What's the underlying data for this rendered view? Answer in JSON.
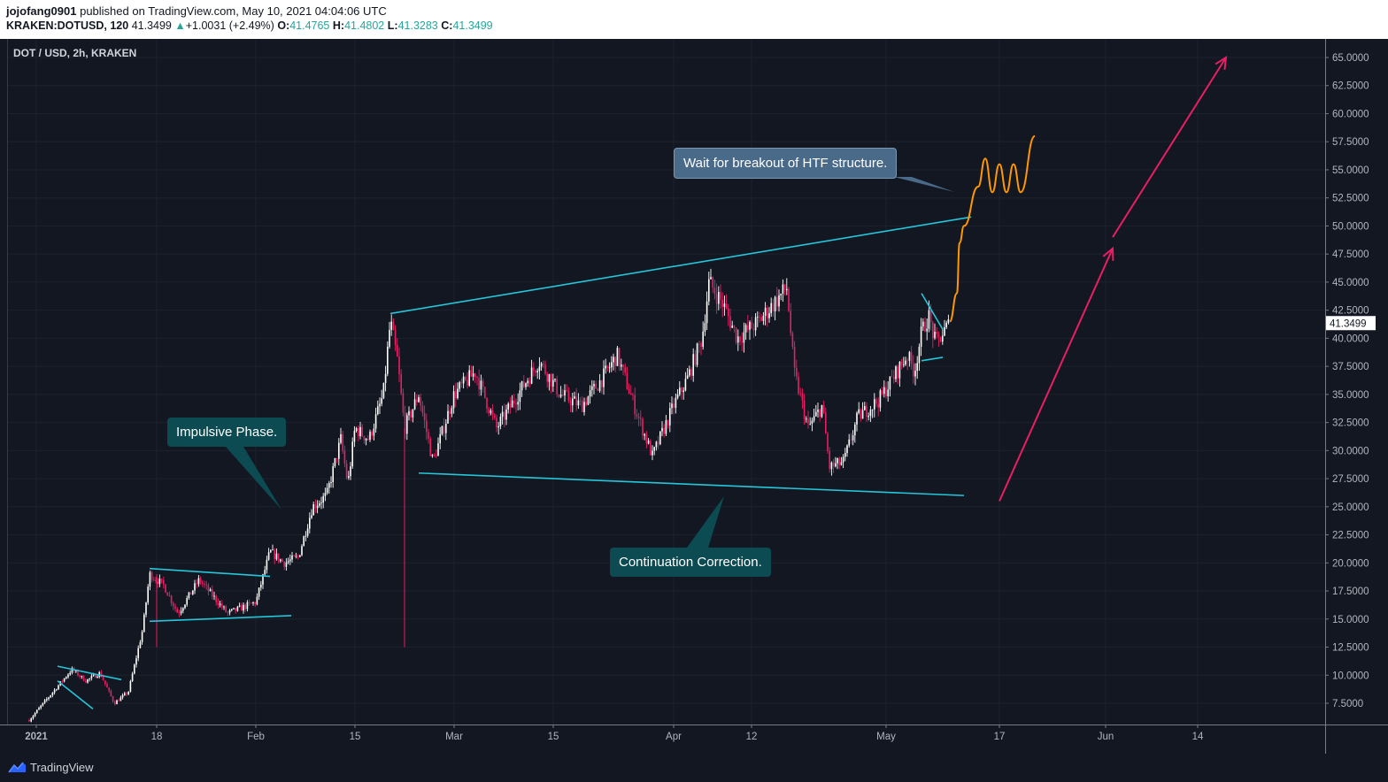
{
  "header": {
    "publisher": "jojofang0901",
    "published_text": "published on TradingView.com, May 10, 2021 04:04:06 UTC",
    "symbol": "KRAKEN:DOTUSD, 120",
    "last": "41.3499",
    "change_arrow": "▲",
    "change": "+1.0031 (+2.49%)",
    "o_label": "O:",
    "o_value": "41.4765",
    "h_label": "H:",
    "h_value": "41.4802",
    "l_label": "L:",
    "l_value": "41.3283",
    "c_label": "C:",
    "c_value": "41.3499"
  },
  "chart_data": {
    "type": "candlestick",
    "title": "DOT / USD, 2h, KRAKEN",
    "last_price_label": "41.3499",
    "y_ticks": [
      7.5,
      10,
      12.5,
      15,
      17.5,
      20,
      22.5,
      25,
      27.5,
      30,
      32.5,
      35,
      37.5,
      40,
      42.5,
      45,
      47.5,
      50,
      52.5,
      55,
      57.5,
      60,
      62.5,
      65
    ],
    "y_tick_decimals": 4,
    "x_ticks": [
      {
        "label": "2021",
        "date": "2021-01-01",
        "bold": true
      },
      {
        "label": "18",
        "date": "2021-01-18"
      },
      {
        "label": "Feb",
        "date": "2021-02-01"
      },
      {
        "label": "15",
        "date": "2021-02-15"
      },
      {
        "label": "Mar",
        "date": "2021-03-01"
      },
      {
        "label": "15",
        "date": "2021-03-15"
      },
      {
        "label": "Apr",
        "date": "2021-04-01"
      },
      {
        "label": "12",
        "date": "2021-04-12"
      },
      {
        "label": "May",
        "date": "2021-05-01"
      },
      {
        "label": "17",
        "date": "2021-05-17"
      },
      {
        "label": "Jun",
        "date": "2021-06-01"
      },
      {
        "label": "14",
        "date": "2021-06-14"
      }
    ],
    "price_path": [
      [
        "2020-12-31",
        6.0
      ],
      [
        "2021-01-04",
        9.0
      ],
      [
        "2021-01-06",
        10.5
      ],
      [
        "2021-01-08",
        9.5
      ],
      [
        "2021-01-10",
        10.2
      ],
      [
        "2021-01-12",
        7.5
      ],
      [
        "2021-01-14",
        8.5
      ],
      [
        "2021-01-16",
        14.0
      ],
      [
        "2021-01-17",
        19.0
      ],
      [
        "2021-01-19",
        18.0
      ],
      [
        "2021-01-21",
        15.5
      ],
      [
        "2021-01-24",
        18.5
      ],
      [
        "2021-01-28",
        15.5
      ],
      [
        "2021-02-01",
        16.5
      ],
      [
        "2021-02-03",
        21.0
      ],
      [
        "2021-02-05",
        20.0
      ],
      [
        "2021-02-07",
        20.5
      ],
      [
        "2021-02-09",
        25.0
      ],
      [
        "2021-02-11",
        26.0
      ],
      [
        "2021-02-13",
        31.0
      ],
      [
        "2021-02-14",
        27.0
      ],
      [
        "2021-02-15",
        32.0
      ],
      [
        "2021-02-17",
        31.0
      ],
      [
        "2021-02-19",
        35.0
      ],
      [
        "2021-02-20",
        41.5
      ],
      [
        "2021-02-21",
        38.0
      ],
      [
        "2021-02-22",
        32.0
      ],
      [
        "2021-02-24",
        35.0
      ],
      [
        "2021-02-26",
        29.0
      ],
      [
        "2021-03-01",
        35.0
      ],
      [
        "2021-03-04",
        37.0
      ],
      [
        "2021-03-07",
        32.0
      ],
      [
        "2021-03-11",
        36.0
      ],
      [
        "2021-03-13",
        38.0
      ],
      [
        "2021-03-16",
        35.0
      ],
      [
        "2021-03-19",
        34.0
      ],
      [
        "2021-03-22",
        36.5
      ],
      [
        "2021-03-24",
        38.5
      ],
      [
        "2021-03-27",
        33.0
      ],
      [
        "2021-03-29",
        29.5
      ],
      [
        "2021-04-01",
        34.0
      ],
      [
        "2021-04-03",
        36.5
      ],
      [
        "2021-04-05",
        40.0
      ],
      [
        "2021-04-06",
        45.0
      ],
      [
        "2021-04-08",
        43.0
      ],
      [
        "2021-04-10",
        40.0
      ],
      [
        "2021-04-13",
        41.5
      ],
      [
        "2021-04-15",
        43.0
      ],
      [
        "2021-04-17",
        44.5
      ],
      [
        "2021-04-18",
        37.0
      ],
      [
        "2021-04-20",
        32.0
      ],
      [
        "2021-04-22",
        34.0
      ],
      [
        "2021-04-23",
        28.5
      ],
      [
        "2021-04-25",
        29.0
      ],
      [
        "2021-04-27",
        33.0
      ],
      [
        "2021-04-30",
        34.5
      ],
      [
        "2021-05-02",
        36.5
      ],
      [
        "2021-05-04",
        38.5
      ],
      [
        "2021-05-05",
        37.0
      ],
      [
        "2021-05-06",
        40.5
      ],
      [
        "2021-05-07",
        42.0
      ],
      [
        "2021-05-08",
        39.5
      ],
      [
        "2021-05-10",
        41.35
      ]
    ],
    "spike_lows": [
      [
        "2021-02-22",
        12.5
      ],
      [
        "2021-01-18",
        12.5
      ]
    ],
    "projection": [
      [
        "2021-05-10",
        41.5
      ],
      [
        "2021-05-11",
        44.0
      ],
      [
        "2021-05-11",
        48.5
      ],
      [
        "2021-05-12",
        50.0
      ],
      [
        "2021-05-14",
        53.5
      ],
      [
        "2021-05-15",
        56.0
      ],
      [
        "2021-05-16",
        53.0
      ],
      [
        "2021-05-17",
        55.5
      ],
      [
        "2021-05-18",
        53.0
      ],
      [
        "2021-05-19",
        55.5
      ],
      [
        "2021-05-20",
        53.0
      ],
      [
        "2021-05-22",
        58.0
      ]
    ],
    "annotations": [
      {
        "type": "trendline",
        "from": [
          "2021-02-20",
          42.2
        ],
        "to": [
          "2021-05-13",
          50.8
        ]
      },
      {
        "type": "trendline",
        "from": [
          "2021-02-24",
          28.0
        ],
        "to": [
          "2021-05-12",
          26.0
        ]
      },
      {
        "type": "trendline",
        "from": [
          "2021-01-17",
          19.5
        ],
        "to": [
          "2021-02-03",
          18.8
        ]
      },
      {
        "type": "trendline",
        "from": [
          "2021-01-17",
          14.8
        ],
        "to": [
          "2021-02-06",
          15.3
        ]
      },
      {
        "type": "trendline",
        "from": [
          "2021-01-04",
          10.8
        ],
        "to": [
          "2021-01-13",
          9.6
        ]
      },
      {
        "type": "trendline",
        "from": [
          "2021-01-04",
          9.5
        ],
        "to": [
          "2021-01-09",
          7.0
        ]
      },
      {
        "type": "trendline",
        "from": [
          "2021-05-06",
          44.0
        ],
        "to": [
          "2021-05-09",
          40.8
        ]
      },
      {
        "type": "trendline",
        "from": [
          "2021-05-06",
          38.0
        ],
        "to": [
          "2021-05-09",
          38.3
        ]
      }
    ],
    "arrows": [
      {
        "from": [
          "2021-05-17",
          25.5
        ],
        "to": [
          "2021-06-02",
          48.0
        ]
      },
      {
        "from": [
          "2021-06-02",
          49.0
        ],
        "to": [
          "2021-06-18",
          65.0
        ]
      }
    ]
  },
  "callouts": {
    "impulsive": "Impulsive Phase.",
    "correction": "Continuation Correction.",
    "breakout": "Wait for breakout of HTF structure."
  },
  "footer": {
    "brand": "TradingView"
  },
  "colors": {
    "background": "#131722",
    "grid": "#1e222d",
    "axis_text": "#b2b5be",
    "candle_up": "#ffffff",
    "candle_down": "#e91e63",
    "trendline": "#26c6da",
    "projection": "#ff9800",
    "arrow": "#e91e63",
    "callout_teal": "#0c4b52",
    "callout_blue": "#4a6a8a"
  }
}
